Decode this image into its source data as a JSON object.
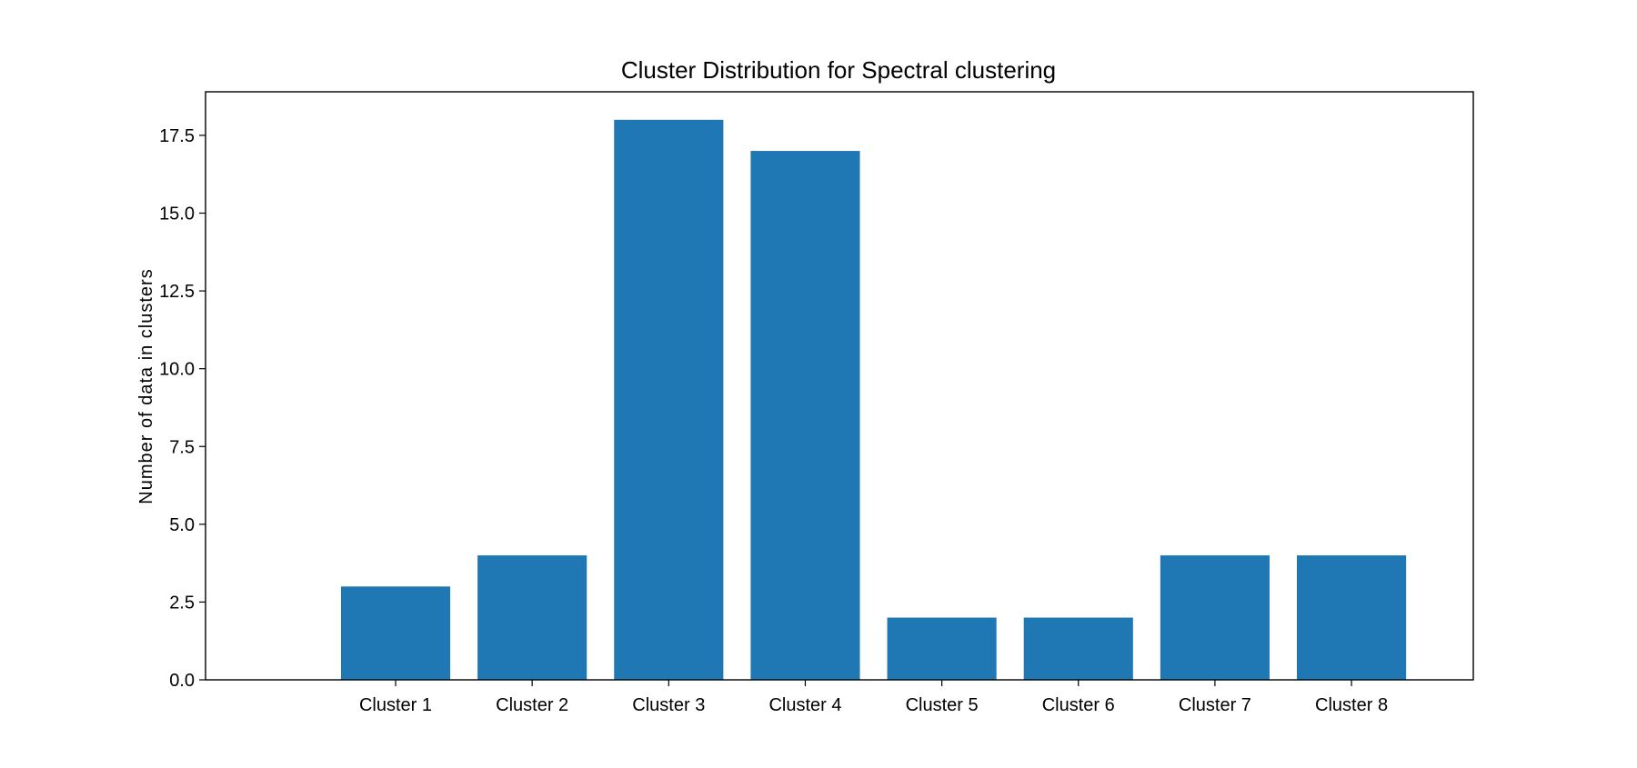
{
  "chart_data": {
    "type": "bar",
    "title": "Cluster Distribution for Spectral clustering",
    "xlabel": "",
    "ylabel": "Number of data in clusters",
    "categories": [
      "Cluster 1",
      "Cluster 2",
      "Cluster 3",
      "Cluster 4",
      "Cluster 5",
      "Cluster 6",
      "Cluster 7",
      "Cluster 8"
    ],
    "values": [
      3,
      4,
      18,
      17,
      2,
      2,
      4,
      4
    ],
    "ylim": [
      0,
      18.9
    ],
    "yticks": [
      "0.0",
      "2.5",
      "5.0",
      "7.5",
      "10.0",
      "12.5",
      "15.0",
      "17.5"
    ],
    "grid": false,
    "legend": "none",
    "bar_color": "#1f77b4"
  }
}
